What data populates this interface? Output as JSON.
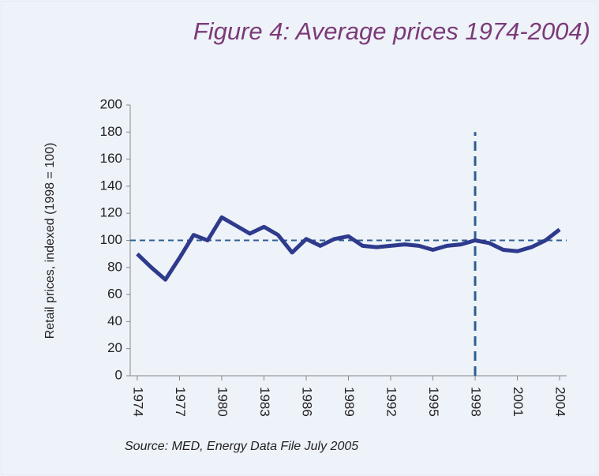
{
  "chart_data": {
    "type": "line",
    "title": "Figure 4: Average prices 1974-2004)",
    "y_label": "Retail prices, indexed (1998 = 100)",
    "source": "Source: MED, Energy Data File July 2005",
    "x": [
      1974,
      1975,
      1976,
      1977,
      1978,
      1979,
      1980,
      1981,
      1982,
      1983,
      1984,
      1985,
      1986,
      1987,
      1988,
      1989,
      1990,
      1991,
      1992,
      1993,
      1994,
      1995,
      1996,
      1997,
      1998,
      1999,
      2000,
      2001,
      2002,
      2003,
      2004
    ],
    "values": [
      90,
      80,
      71,
      87,
      104,
      100,
      117,
      111,
      105,
      110,
      104,
      91,
      101,
      96,
      101,
      103,
      96,
      95,
      96,
      97,
      96,
      93,
      96,
      97,
      100,
      98,
      93,
      92,
      95,
      100,
      108
    ],
    "color": "#2e3a8c",
    "xlim": [
      1973.5,
      2004.5
    ],
    "xticks": [
      1974,
      1977,
      1980,
      1983,
      1986,
      1989,
      1992,
      1995,
      1998,
      2001,
      2004
    ],
    "ylim": [
      0,
      200
    ],
    "yticks": [
      0,
      20,
      40,
      60,
      80,
      100,
      120,
      140,
      160,
      180,
      200
    ],
    "reference_lines": {
      "y": 100,
      "x": 1998,
      "x_line_top": 180,
      "color": "#2e5f8f"
    }
  }
}
